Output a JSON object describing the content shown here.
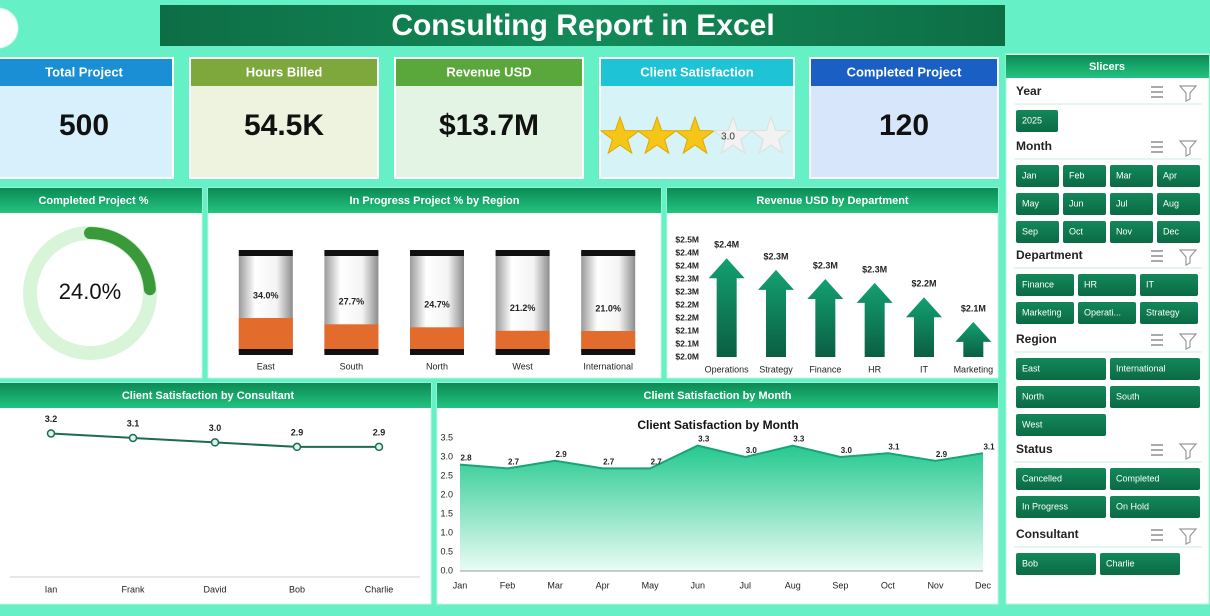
{
  "title": "Consulting Report in Excel",
  "kpis": [
    {
      "label": "Total Project",
      "value": "500"
    },
    {
      "label": "Hours Billed",
      "value": "54.5K"
    },
    {
      "label": "Revenue USD",
      "value": "$13.7M"
    },
    {
      "label": "Client Satisfaction",
      "value": 3,
      "value_label": "3.0"
    },
    {
      "label": "Completed Project",
      "value": "120"
    }
  ],
  "chart_data": [
    {
      "type": "donut",
      "title": "Completed Project %",
      "values": [
        24.0
      ],
      "value_labels": [
        "24.0%"
      ],
      "color": "#3a9a3a"
    },
    {
      "type": "bar",
      "title": "In Progress Project % by Region",
      "categories": [
        "East",
        "South",
        "North",
        "West",
        "International"
      ],
      "values": [
        34.0,
        27.7,
        24.7,
        21.2,
        21.0
      ],
      "value_labels": [
        "34.0%",
        "27.7%",
        "24.7%",
        "21.2%",
        "21.0%"
      ],
      "ylim": [
        0,
        100
      ],
      "color": "#e36c2c"
    },
    {
      "type": "arrow",
      "title": "Revenue USD by Department",
      "categories": [
        "Operations",
        "Strategy",
        "Finance",
        "HR",
        "IT",
        "Marketing"
      ],
      "values": [
        2380000,
        2335000,
        2300000,
        2285000,
        2230000,
        2135000
      ],
      "value_labels": [
        "$2.4M",
        "$2.3M",
        "$2.3M",
        "$2.3M",
        "$2.2M",
        "$2.1M"
      ],
      "ylim": [
        2000000,
        2450000
      ],
      "yticks": [
        {
          "value": 2000000,
          "label": "$2.0M"
        },
        {
          "value": 2050000,
          "label": "$2.1M"
        },
        {
          "value": 2100000,
          "label": "$2.1M"
        },
        {
          "value": 2150000,
          "label": "$2.2M"
        },
        {
          "value": 2200000,
          "label": "$2.2M"
        },
        {
          "value": 2250000,
          "label": "$2.3M"
        },
        {
          "value": 2300000,
          "label": "$2.3M"
        },
        {
          "value": 2350000,
          "label": "$2.4M"
        },
        {
          "value": 2400000,
          "label": "$2.4M"
        },
        {
          "value": 2450000,
          "label": "$2.5M"
        }
      ],
      "grid": false,
      "color": "#0f8a5f"
    },
    {
      "type": "line",
      "title": "Client Satisfaction by Consultant",
      "categories": [
        "Ian",
        "Frank",
        "David",
        "Bob",
        "Charlie"
      ],
      "values": [
        3.2,
        3.1,
        3.0,
        2.9,
        2.9
      ],
      "value_labels": [
        "3.2",
        "3.1",
        "3.0",
        "2.9",
        "2.9"
      ],
      "ylim": [
        0,
        3.5
      ],
      "color": "#1f6b4f"
    },
    {
      "type": "area",
      "title": "Client Satisfaction by Month",
      "chart_title": "Client Satisfaction by Month",
      "categories": [
        "Jan",
        "Feb",
        "Mar",
        "Apr",
        "May",
        "Jun",
        "Jul",
        "Aug",
        "Sep",
        "Oct",
        "Nov",
        "Dec"
      ],
      "values": [
        2.8,
        2.7,
        2.9,
        2.7,
        2.7,
        3.3,
        3.0,
        3.3,
        3.0,
        3.1,
        2.9,
        3.1
      ],
      "value_labels": [
        "2.8",
        "2.7",
        "2.9",
        "2.7",
        "2.7",
        "3.3",
        "3.0",
        "3.3",
        "3.0",
        "3.1",
        "2.9",
        "3.1"
      ],
      "ylim": [
        0,
        3.5
      ],
      "yticks": [
        {
          "value": 0,
          "label": "0.0"
        },
        {
          "value": 0.5,
          "label": "0.5"
        },
        {
          "value": 1,
          "label": "1.0"
        },
        {
          "value": 1.5,
          "label": "1.5"
        },
        {
          "value": 2,
          "label": "2.0"
        },
        {
          "value": 2.5,
          "label": "2.5"
        },
        {
          "value": 3,
          "label": "3.0"
        },
        {
          "value": 3.5,
          "label": "3.5"
        }
      ],
      "grid": false,
      "color": "#1aa37a"
    }
  ],
  "slicers": {
    "title": "Slicers",
    "groups": [
      {
        "name": "Year",
        "items": [
          "2025"
        ]
      },
      {
        "name": "Month",
        "items": [
          "Jan",
          "Feb",
          "Mar",
          "Apr",
          "May",
          "Jun",
          "Jul",
          "Aug",
          "Sep",
          "Oct",
          "Nov",
          "Dec"
        ]
      },
      {
        "name": "Department",
        "items": [
          "Finance",
          "HR",
          "IT",
          "Marketing",
          "Operati...",
          "Strategy"
        ]
      },
      {
        "name": "Region",
        "items": [
          "East",
          "International",
          "North",
          "South",
          "West"
        ]
      },
      {
        "name": "Status",
        "items": [
          "Cancelled",
          "Completed",
          "In Progress",
          "On Hold"
        ]
      },
      {
        "name": "Consultant",
        "items": [
          "Bob",
          "Charlie"
        ]
      }
    ]
  }
}
